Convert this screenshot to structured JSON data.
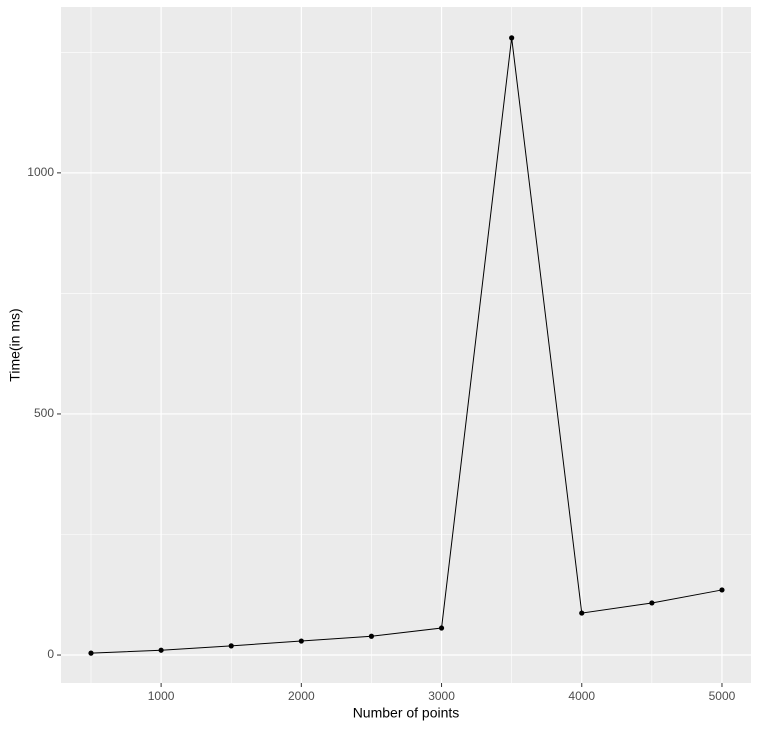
{
  "chart_data": {
    "type": "line",
    "x_label": "Number of points",
    "y_label": "Time(in ms)",
    "x": [
      500,
      1000,
      1500,
      2000,
      2500,
      3000,
      3500,
      4000,
      4500,
      5000
    ],
    "series": [
      {
        "color": "#000000",
        "values": [
          4,
          10,
          19,
          29,
          39,
          56,
          1280,
          87,
          108,
          135
        ]
      }
    ],
    "xlim": [
      286,
      5207
    ],
    "xticks": [
      1000,
      2000,
      3000,
      4000,
      5000
    ],
    "ylim": [
      -58,
      1344
    ],
    "yticks": [
      0,
      500,
      1000
    ],
    "grid": true,
    "background": "#ebebeb"
  }
}
